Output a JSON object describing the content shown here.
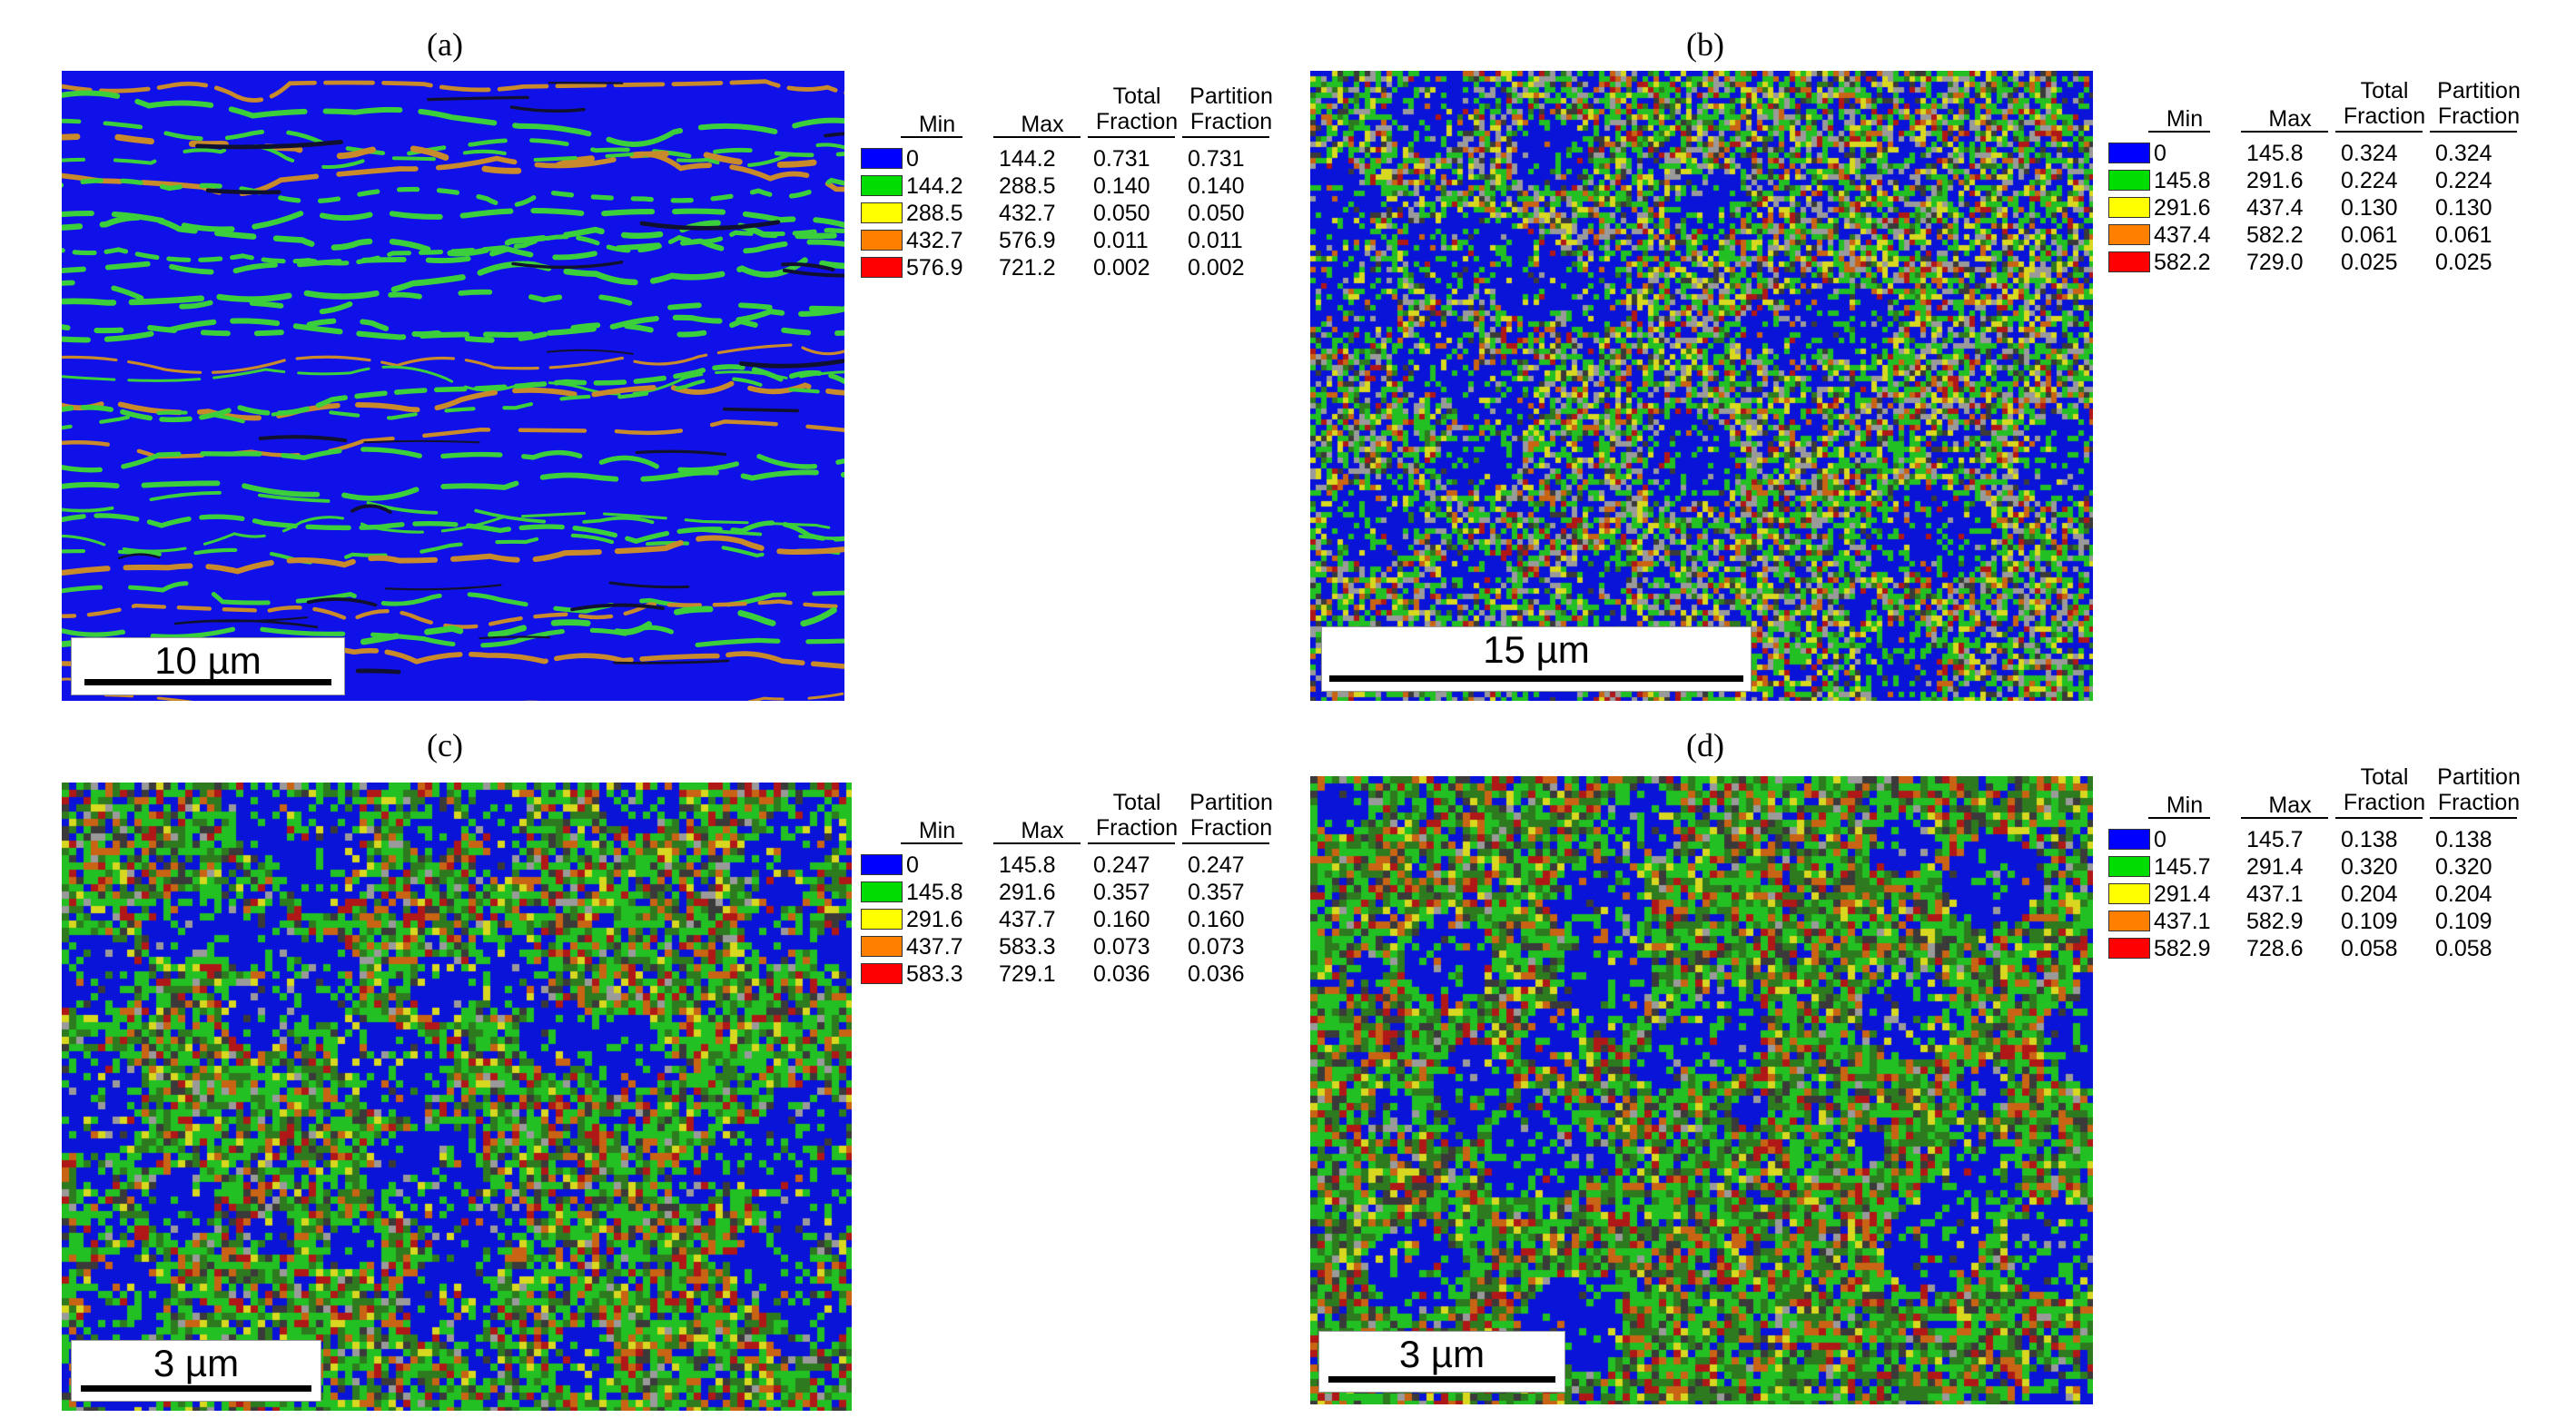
{
  "panels": [
    {
      "label": "(a)",
      "scalebar": "10 µm",
      "legend": {
        "headers": {
          "min": "Min",
          "max": "Max",
          "total": [
            "Total",
            "Fraction"
          ],
          "partition": [
            "Partition",
            "Fraction"
          ]
        },
        "rows": [
          {
            "color": "#0000ff",
            "min": "0",
            "max": "144.2",
            "total": "0.731",
            "partition": "0.731"
          },
          {
            "color": "#00dd00",
            "min": "144.2",
            "max": "288.5",
            "total": "0.140",
            "partition": "0.140"
          },
          {
            "color": "#ffff00",
            "min": "288.5",
            "max": "432.7",
            "total": "0.050",
            "partition": "0.050"
          },
          {
            "color": "#ff8000",
            "min": "432.7",
            "max": "576.9",
            "total": "0.011",
            "partition": "0.011"
          },
          {
            "color": "#ff0000",
            "min": "576.9",
            "max": "721.2",
            "total": "0.002",
            "partition": "0.002"
          }
        ]
      }
    },
    {
      "label": "(b)",
      "scalebar": "15 µm",
      "legend": {
        "headers": {
          "min": "Min",
          "max": "Max",
          "total": [
            "Total",
            "Fraction"
          ],
          "partition": [
            "Partition",
            "Fraction"
          ]
        },
        "rows": [
          {
            "color": "#0000ff",
            "min": "0",
            "max": "145.8",
            "total": "0.324",
            "partition": "0.324"
          },
          {
            "color": "#00dd00",
            "min": "145.8",
            "max": "291.6",
            "total": "0.224",
            "partition": "0.224"
          },
          {
            "color": "#ffff00",
            "min": "291.6",
            "max": "437.4",
            "total": "0.130",
            "partition": "0.130"
          },
          {
            "color": "#ff8000",
            "min": "437.4",
            "max": "582.2",
            "total": "0.061",
            "partition": "0.061"
          },
          {
            "color": "#ff0000",
            "min": "582.2",
            "max": "729.0",
            "total": "0.025",
            "partition": "0.025"
          }
        ]
      }
    },
    {
      "label": "(c)",
      "scalebar": "3 µm",
      "legend": {
        "headers": {
          "min": "Min",
          "max": "Max",
          "total": [
            "Total",
            "Fraction"
          ],
          "partition": [
            "Partition",
            "Fraction"
          ]
        },
        "rows": [
          {
            "color": "#0000ff",
            "min": "0",
            "max": "145.8",
            "total": "0.247",
            "partition": "0.247"
          },
          {
            "color": "#00dd00",
            "min": "145.8",
            "max": "291.6",
            "total": "0.357",
            "partition": "0.357"
          },
          {
            "color": "#ffff00",
            "min": "291.6",
            "max": "437.7",
            "total": "0.160",
            "partition": "0.160"
          },
          {
            "color": "#ff8000",
            "min": "437.7",
            "max": "583.3",
            "total": "0.073",
            "partition": "0.073"
          },
          {
            "color": "#ff0000",
            "min": "583.3",
            "max": "729.1",
            "total": "0.036",
            "partition": "0.036"
          }
        ]
      }
    },
    {
      "label": "(d)",
      "scalebar": "3 µm",
      "legend": {
        "headers": {
          "min": "Min",
          "max": "Max",
          "total": [
            "Total",
            "Fraction"
          ],
          "partition": [
            "Partition",
            "Fraction"
          ]
        },
        "rows": [
          {
            "color": "#0000ff",
            "min": "0",
            "max": "145.7",
            "total": "0.138",
            "partition": "0.138"
          },
          {
            "color": "#00dd00",
            "min": "145.7",
            "max": "291.4",
            "total": "0.320",
            "partition": "0.320"
          },
          {
            "color": "#ffff00",
            "min": "291.4",
            "max": "437.1",
            "total": "0.204",
            "partition": "0.204"
          },
          {
            "color": "#ff8000",
            "min": "437.1",
            "max": "582.9",
            "total": "0.109",
            "partition": "0.109"
          },
          {
            "color": "#ff0000",
            "min": "582.9",
            "max": "728.6",
            "total": "0.058",
            "partition": "0.058"
          }
        ]
      }
    }
  ]
}
